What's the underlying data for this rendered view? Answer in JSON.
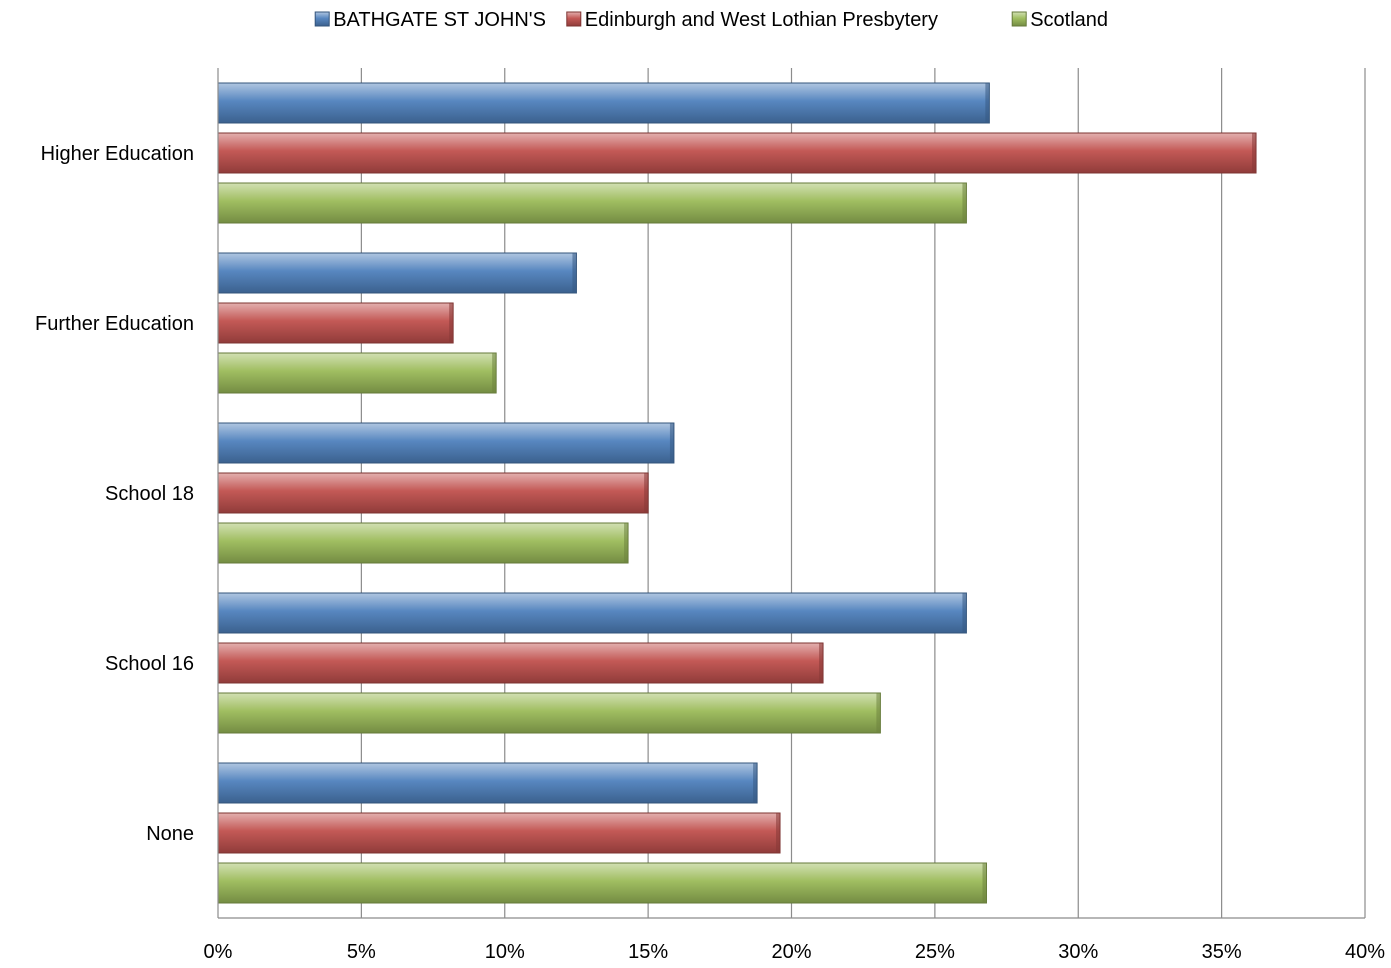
{
  "chart_data": {
    "type": "bar",
    "orientation": "horizontal",
    "categories": [
      "Higher Education",
      "Further Education",
      "School 18",
      "School 16",
      "None"
    ],
    "series": [
      {
        "name": "BATHGATE ST JOHN'S",
        "color": "#4f81bd",
        "values": [
          26.9,
          12.5,
          15.9,
          26.1,
          18.8
        ]
      },
      {
        "name": "Edinburgh and West Lothian Presbytery",
        "color": "#c0504d",
        "values": [
          36.2,
          8.2,
          15.0,
          21.1,
          19.6
        ]
      },
      {
        "name": "Scotland",
        "color": "#9bbb59",
        "values": [
          26.1,
          9.7,
          14.3,
          23.1,
          26.8
        ]
      }
    ],
    "xlim": [
      0,
      40
    ],
    "xticks": [
      "0%",
      "5%",
      "10%",
      "15%",
      "20%",
      "25%",
      "30%",
      "35%",
      "40%"
    ],
    "grid": true,
    "legend_position": "top"
  }
}
